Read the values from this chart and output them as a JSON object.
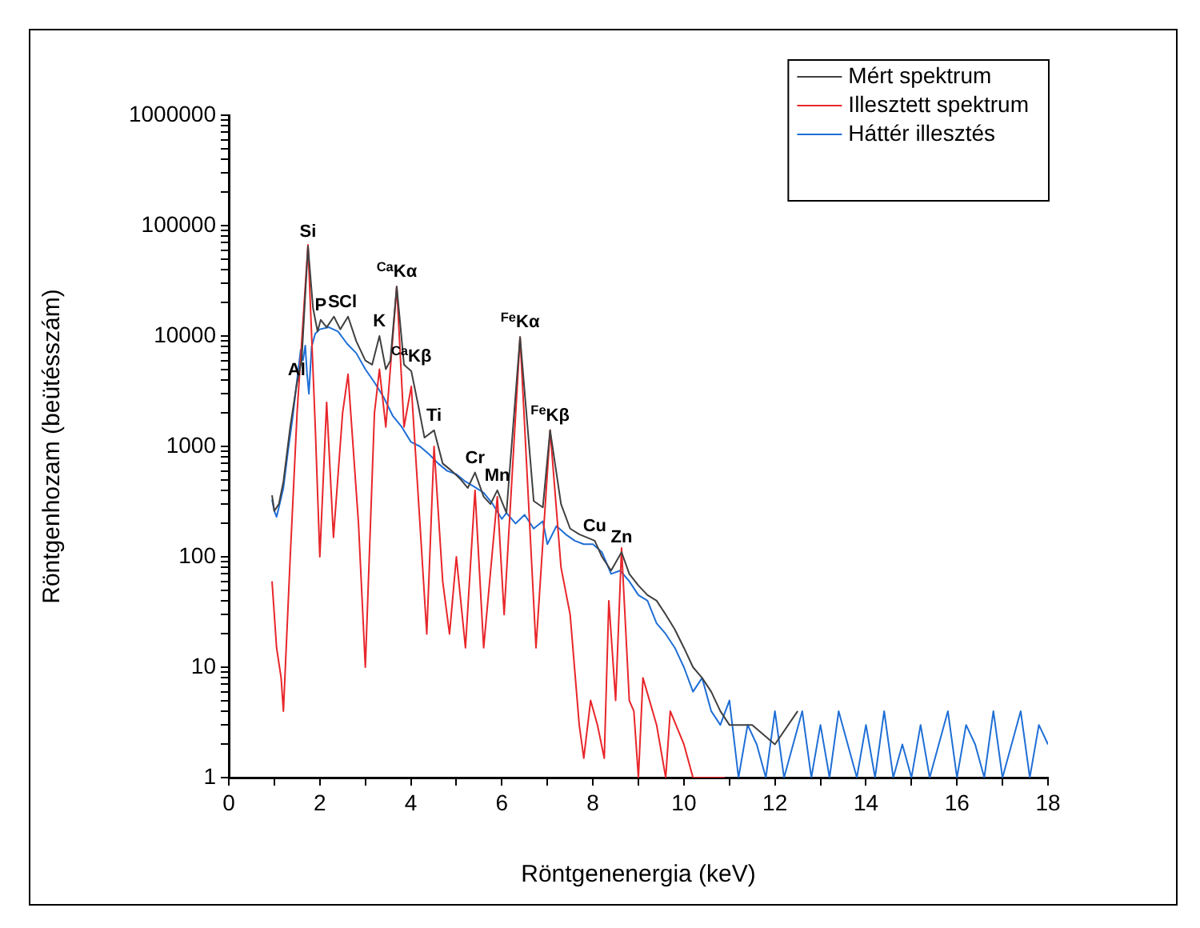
{
  "chart_data": {
    "type": "line",
    "xlabel": "Röntgenenergia (keV)",
    "ylabel": "Röntgenhozam (beütésszám)",
    "log": "y",
    "grid": false,
    "legend": "top right",
    "marker": "none",
    "line_style": "solid",
    "xlim": [
      0,
      18
    ],
    "xticks": [
      0,
      {
        "value": 1,
        "label": null
      },
      2,
      {
        "value": 3,
        "label": null
      },
      4,
      {
        "value": 5,
        "label": null
      },
      6,
      {
        "value": 7,
        "label": null
      },
      8,
      {
        "value": 9,
        "label": null
      },
      10,
      {
        "value": 11,
        "label": null
      },
      12,
      {
        "value": 13,
        "label": null
      },
      14,
      {
        "value": 15,
        "label": null
      },
      16,
      {
        "value": 17,
        "label": null
      },
      18
    ],
    "ylim": [
      1,
      1000000
    ],
    "yticks": [
      1,
      {
        "value": 2,
        "label": null
      },
      {
        "value": 3,
        "label": null
      },
      {
        "value": 4,
        "label": null
      },
      {
        "value": 5,
        "label": null
      },
      {
        "value": 6,
        "label": null
      },
      {
        "value": 7,
        "label": null
      },
      {
        "value": 8,
        "label": null
      },
      {
        "value": 9,
        "label": null
      },
      10,
      {
        "value": 20,
        "label": null
      },
      {
        "value": 30,
        "label": null
      },
      {
        "value": 40,
        "label": null
      },
      {
        "value": 50,
        "label": null
      },
      {
        "value": 60,
        "label": null
      },
      {
        "value": 70,
        "label": null
      },
      {
        "value": 80,
        "label": null
      },
      {
        "value": 90,
        "label": null
      },
      100,
      {
        "value": 200,
        "label": null
      },
      {
        "value": 300,
        "label": null
      },
      {
        "value": 400,
        "label": null
      },
      {
        "value": 500,
        "label": null
      },
      {
        "value": 600,
        "label": null
      },
      {
        "value": 700,
        "label": null
      },
      {
        "value": 800,
        "label": null
      },
      {
        "value": 900,
        "label": null
      },
      1000,
      {
        "value": 2000,
        "label": null
      },
      {
        "value": 3000,
        "label": null
      },
      {
        "value": 4000,
        "label": null
      },
      {
        "value": 5000,
        "label": null
      },
      {
        "value": 6000,
        "label": null
      },
      {
        "value": 7000,
        "label": null
      },
      {
        "value": 8000,
        "label": null
      },
      {
        "value": 9000,
        "label": null
      },
      10000,
      {
        "value": 20000,
        "label": null
      },
      {
        "value": 30000,
        "label": null
      },
      {
        "value": 40000,
        "label": null
      },
      {
        "value": 50000,
        "label": null
      },
      {
        "value": 60000,
        "label": null
      },
      {
        "value": 70000,
        "label": null
      },
      {
        "value": 80000,
        "label": null
      },
      {
        "value": 90000,
        "label": null
      },
      100000,
      {
        "value": 200000,
        "label": null
      },
      {
        "value": 300000,
        "label": null
      },
      {
        "value": 400000,
        "label": null
      },
      {
        "value": 500000,
        "label": null
      },
      {
        "value": 600000,
        "label": null
      },
      {
        "value": 700000,
        "label": null
      },
      {
        "value": 800000,
        "label": null
      },
      {
        "value": 900000,
        "label": null
      },
      1000000
    ],
    "series": [
      {
        "name": "Mért spektrum",
        "color": "#404040",
        "x": [
          0.95,
          1.0,
          1.1,
          1.2,
          1.35,
          1.49,
          1.6,
          1.74,
          1.85,
          1.95,
          2.02,
          2.15,
          2.31,
          2.45,
          2.62,
          2.8,
          3.0,
          3.15,
          3.31,
          3.45,
          3.55,
          3.69,
          3.85,
          4.01,
          4.15,
          4.3,
          4.51,
          4.7,
          4.9,
          5.1,
          5.25,
          5.41,
          5.6,
          5.75,
          5.9,
          6.1,
          6.4,
          6.7,
          6.9,
          7.06,
          7.3,
          7.5,
          7.7,
          8.04,
          8.2,
          8.4,
          8.63,
          8.8,
          9.0,
          9.2,
          9.4,
          9.6,
          9.8,
          10.0,
          10.2,
          10.4,
          10.6,
          10.8,
          11.0,
          11.5,
          12.0,
          12.5
        ],
        "values": [
          360,
          260,
          300,
          480,
          1500,
          3600,
          6000,
          65000,
          18000,
          11000,
          14000,
          12000,
          15000,
          11500,
          15000,
          9000,
          6000,
          5500,
          10000,
          5000,
          6000,
          28000,
          5500,
          4800,
          2500,
          1200,
          1400,
          700,
          600,
          500,
          420,
          580,
          350,
          300,
          400,
          250,
          9800,
          320,
          280,
          1400,
          300,
          180,
          160,
          140,
          100,
          75,
          110,
          70,
          55,
          45,
          40,
          30,
          22,
          15,
          10,
          8,
          6,
          4,
          3,
          3,
          2,
          4
        ]
      },
      {
        "name": "Illesztett spektrum",
        "color": "#e8262a",
        "x": [
          0.95,
          1.05,
          1.15,
          1.2,
          1.35,
          1.5,
          1.74,
          1.9,
          2.0,
          2.15,
          2.3,
          2.5,
          2.62,
          2.85,
          3.0,
          3.2,
          3.31,
          3.45,
          3.69,
          3.85,
          4.01,
          4.2,
          4.35,
          4.51,
          4.7,
          4.85,
          5.0,
          5.2,
          5.41,
          5.6,
          5.9,
          6.05,
          6.4,
          6.75,
          7.06,
          7.3,
          7.5,
          7.7,
          7.8,
          7.95,
          8.1,
          8.25,
          8.35,
          8.5,
          8.63,
          8.8,
          8.9,
          9.0,
          9.1,
          9.4,
          9.6,
          9.7,
          10.0,
          10.2,
          10.9
        ],
        "values": [
          60,
          15,
          8,
          4,
          100,
          2000,
          67000,
          1500,
          100,
          2500,
          150,
          2000,
          4500,
          200,
          10,
          2000,
          5000,
          1500,
          28000,
          1500,
          3500,
          200,
          20,
          1000,
          60,
          20,
          100,
          15,
          400,
          15,
          350,
          30,
          9800,
          15,
          1400,
          80,
          30,
          3,
          1.5,
          5,
          3,
          1.5,
          40,
          5,
          120,
          5,
          4,
          1,
          8,
          3,
          1,
          4,
          2,
          1,
          1
        ]
      },
      {
        "name": "Háttér illesztés",
        "color": "#1f6fd6",
        "x": [
          0.95,
          1.0,
          1.05,
          1.1,
          1.2,
          1.3,
          1.4,
          1.5,
          1.58,
          1.63,
          1.68,
          1.72,
          1.76,
          1.82,
          1.9,
          2.0,
          2.2,
          2.4,
          2.6,
          2.8,
          3.0,
          3.2,
          3.4,
          3.6,
          3.8,
          4.0,
          4.2,
          4.4,
          4.6,
          4.8,
          5.0,
          5.2,
          5.4,
          5.6,
          5.8,
          6.0,
          6.1,
          6.3,
          6.5,
          6.7,
          6.9,
          7.0,
          7.2,
          7.4,
          7.6,
          7.8,
          8.0,
          8.2,
          8.4,
          8.6,
          8.8,
          9.0,
          9.2,
          9.4,
          9.6,
          9.8,
          10.0,
          10.2,
          10.4,
          10.6,
          10.8,
          11.0,
          11.2,
          11.4,
          11.6,
          11.8,
          12.0,
          12.2,
          12.4,
          12.6,
          12.8,
          13.0,
          13.2,
          13.4,
          13.6,
          13.8,
          14.0,
          14.2,
          14.4,
          14.6,
          14.8,
          15.0,
          15.2,
          15.4,
          15.6,
          15.8,
          16.0,
          16.2,
          16.4,
          16.6,
          16.8,
          17.0,
          17.2,
          17.4,
          17.6,
          17.8,
          18.0
        ],
        "values": [
          330,
          260,
          230,
          280,
          420,
          900,
          1800,
          4000,
          7500,
          6000,
          8200,
          4500,
          3000,
          8000,
          10500,
          11500,
          12000,
          11000,
          8500,
          7000,
          5000,
          3800,
          2800,
          1900,
          1500,
          1100,
          1000,
          850,
          700,
          600,
          560,
          480,
          430,
          380,
          300,
          220,
          250,
          200,
          240,
          180,
          210,
          130,
          190,
          160,
          140,
          130,
          130,
          110,
          70,
          75,
          60,
          45,
          40,
          25,
          20,
          15,
          10,
          6,
          8,
          4,
          3,
          5,
          1,
          3,
          2,
          1,
          4,
          1,
          2,
          4,
          1,
          3,
          1,
          4,
          2,
          1,
          3,
          1,
          4,
          1,
          2,
          1,
          3,
          1,
          2,
          4,
          1,
          3,
          2,
          1,
          4,
          1,
          2,
          4,
          1,
          3,
          2
        ]
      }
    ],
    "annotations": [
      {
        "text": "Si",
        "x": 1.74,
        "y": 65000
      },
      {
        "text": "Al",
        "x": 1.49,
        "y": 3600
      },
      {
        "text": "P",
        "x": 2.02,
        "y": 14000
      },
      {
        "text": "S",
        "x": 2.31,
        "y": 15000
      },
      {
        "text": "Cl",
        "x": 2.62,
        "y": 15000
      },
      {
        "text": "K",
        "x": 3.31,
        "y": 10000
      },
      {
        "text": "$^{Ca}$Kα",
        "x": 3.69,
        "y": 28000
      },
      {
        "text": "$^{Ca}$Kβ",
        "x": 4.01,
        "y": 4800
      },
      {
        "text": "Ti",
        "x": 4.51,
        "y": 1400
      },
      {
        "text": "Cr",
        "x": 5.41,
        "y": 580
      },
      {
        "text": "Mn",
        "x": 5.9,
        "y": 400
      },
      {
        "text": "$^{Fe}$Kα",
        "x": 6.4,
        "y": 9800
      },
      {
        "text": "$^{Fe}$Kβ",
        "x": 7.06,
        "y": 1400
      },
      {
        "text": "Cu",
        "x": 8.04,
        "y": 140
      },
      {
        "text": "Zn",
        "x": 8.63,
        "y": 110
      }
    ]
  }
}
